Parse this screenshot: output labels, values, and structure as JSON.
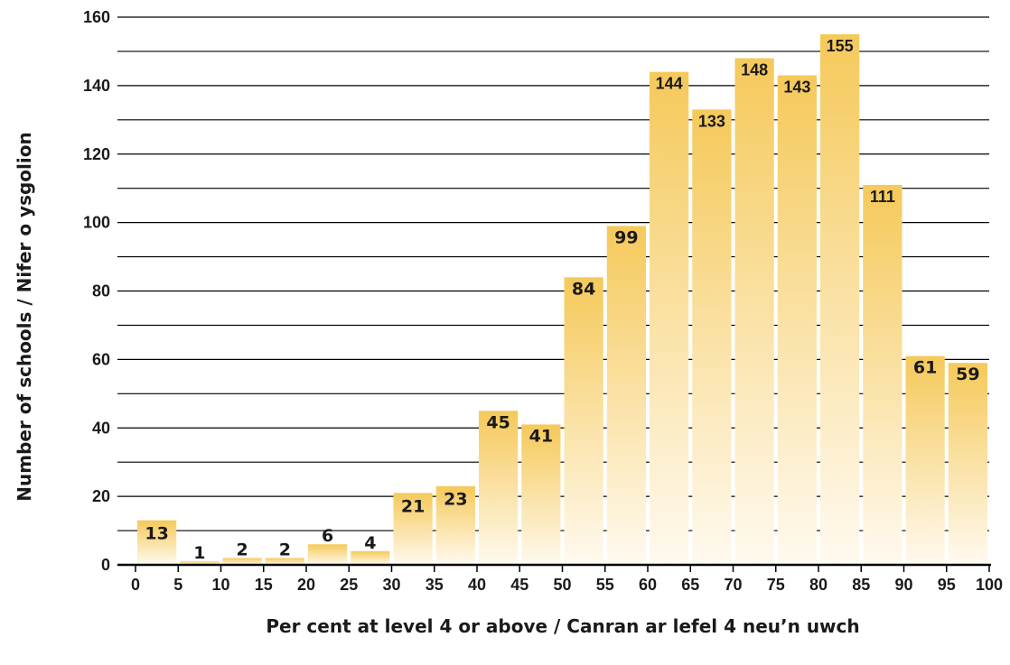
{
  "chart_data": {
    "type": "bar",
    "categories": [
      "0-5",
      "5-10",
      "10-15",
      "15-20",
      "20-25",
      "25-30",
      "30-35",
      "35-40",
      "40-45",
      "45-50",
      "50-55",
      "55-60",
      "60-65",
      "65-70",
      "70-75",
      "75-80",
      "80-85",
      "85-90",
      "90-95",
      "95-100"
    ],
    "values": [
      13,
      1,
      2,
      2,
      6,
      4,
      21,
      23,
      45,
      41,
      84,
      99,
      144,
      133,
      148,
      143,
      155,
      111,
      61,
      59
    ],
    "xticks": [
      "0",
      "5",
      "10",
      "15",
      "20",
      "25",
      "30",
      "35",
      "40",
      "45",
      "50",
      "55",
      "60",
      "65",
      "70",
      "75",
      "80",
      "85",
      "90",
      "95",
      "100"
    ],
    "yticks": [
      "0",
      "20",
      "40",
      "60",
      "80",
      "100",
      "120",
      "140",
      "160"
    ],
    "title": "",
    "xlabel": "Per cent at level 4 or above / Canran ar lefel 4 neu’n uwch",
    "ylabel": "Number of schools / Nifer o ysgolion",
    "ylim": [
      0,
      160
    ],
    "xlim": [
      0,
      100
    ],
    "grid": "horizontal lines every 10",
    "bar_color_top": "#f5c95a",
    "bar_color_bottom": "#fffaf0"
  }
}
